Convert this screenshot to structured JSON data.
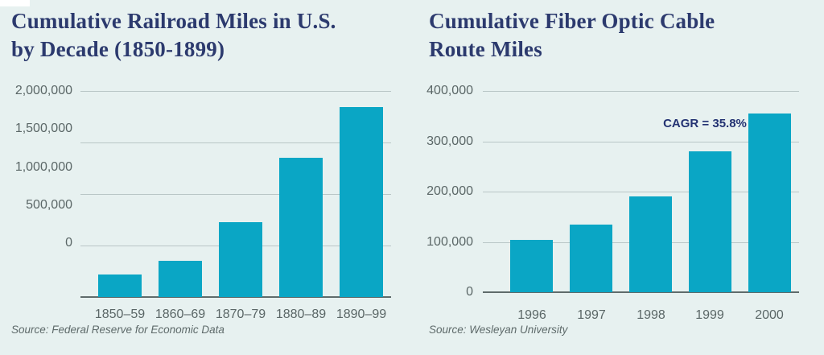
{
  "page": {
    "background_color": "#e7f1f0",
    "bar_color": "#0aa6c5",
    "title_color": "#2c3a6e",
    "axis_text_color": "#5b6767",
    "gridline_color": "#b9c6c6",
    "axis_line_color": "#5f6b6b",
    "source_text_color": "#5e6a6a",
    "annotation_color": "#233272"
  },
  "chart_data": [
    {
      "type": "bar",
      "title": "Cumulative Railroad Miles in U.S. by Decade (1850-1899)",
      "title_lines": [
        "Cumulative Railroad Miles in U.S.",
        "by Decade (1850-1899)"
      ],
      "categories": [
        "1850–59",
        "1860–69",
        "1870–79",
        "1880–89",
        "1890–99"
      ],
      "values": [
        220000,
        350000,
        730000,
        1350000,
        1840000
      ],
      "ylim": [
        0,
        2000000
      ],
      "y_ticks": [
        "2,000,000",
        "1,500,000",
        "1,000,000",
        "500,000",
        "0"
      ],
      "grid": true,
      "legend": "none",
      "xlabel": "",
      "ylabel": "",
      "source": "Source: Federal Reserve for Economic Data"
    },
    {
      "type": "bar",
      "title": "Cumulative Fiber Optic Cable Route Miles",
      "title_lines": [
        "Cumulative Fiber Optic Cable",
        "Route Miles"
      ],
      "categories": [
        "1996",
        "1997",
        "1998",
        "1999",
        "2000"
      ],
      "values": [
        104000,
        135000,
        190000,
        280000,
        355000
      ],
      "ylim": [
        0,
        400000
      ],
      "y_ticks": [
        "400,000",
        "300,000",
        "200,000",
        "100,000",
        "0"
      ],
      "grid": true,
      "legend": "none",
      "annotation": "CAGR = 35.8%",
      "xlabel": "",
      "ylabel": "",
      "source": "Source: Wesleyan University"
    }
  ]
}
